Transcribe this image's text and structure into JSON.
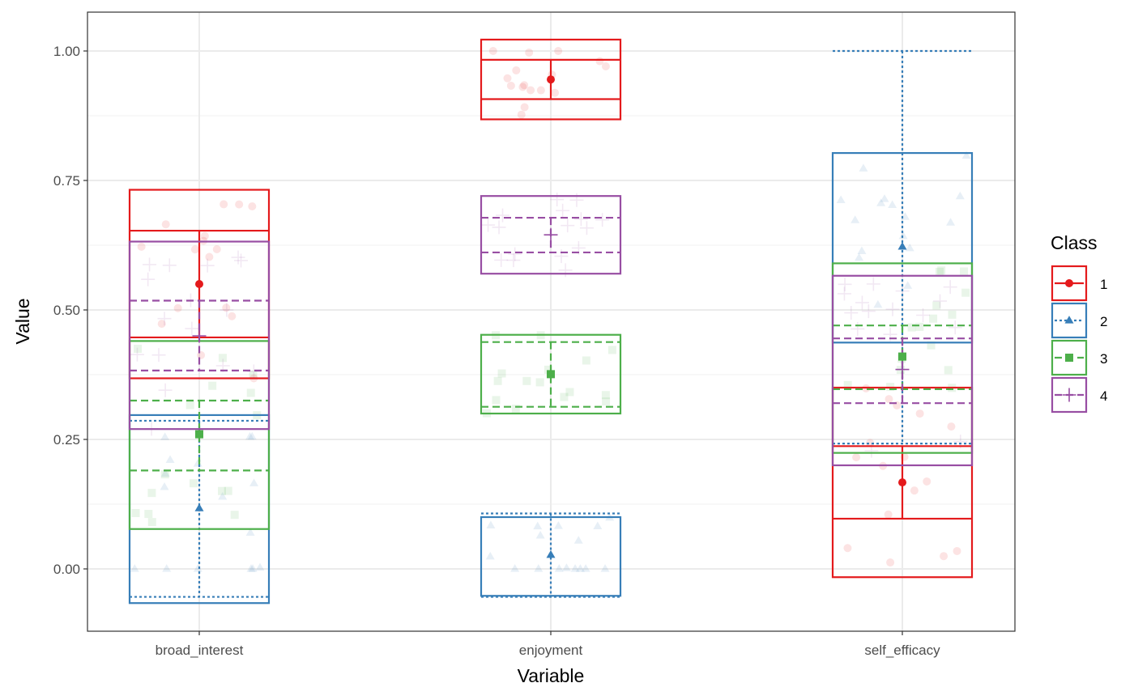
{
  "chart_data": {
    "type": "boxplot",
    "xlabel": "Variable",
    "ylabel": "Value",
    "categories": [
      "broad_interest",
      "enjoyment",
      "self_efficacy"
    ],
    "ylim": [
      -0.075,
      1.075
    ],
    "yticks": [
      0.0,
      0.25,
      0.5,
      0.75,
      1.0
    ],
    "ytick_labels": [
      "0.00",
      "0.25",
      "0.50",
      "0.75",
      "1.00"
    ],
    "grid": true,
    "legend": {
      "title": "Class",
      "position": "right"
    },
    "series": [
      {
        "name": "1",
        "color": "#e41a1c",
        "linetype": "solid",
        "shape": "circle",
        "mean": [
          0.55,
          0.945,
          0.167
        ],
        "ci": [
          [
            0.447,
            0.653
          ],
          [
            0.907,
            0.983
          ],
          [
            0.097,
            0.237
          ]
        ],
        "box": [
          [
            0.368,
            0.732
          ],
          [
            0.868,
            1.022
          ],
          [
            -0.016,
            0.35
          ]
        ],
        "band_start": [
          -0.5,
          -0.5,
          -0.5
        ]
      },
      {
        "name": "2",
        "color": "#377eb8",
        "linetype": "dotted",
        "shape": "triangle",
        "mean": [
          0.117,
          0.027,
          0.622
        ],
        "ci": [
          [
            -0.054,
            0.286
          ],
          [
            -0.054,
            0.107
          ],
          [
            0.242,
            1.0
          ]
        ],
        "box": [
          [
            -0.066,
            0.297
          ],
          [
            -0.052,
            0.1
          ],
          [
            0.437,
            0.803
          ]
        ],
        "band_start": [
          -0.1,
          -0.1,
          -0.1
        ]
      },
      {
        "name": "3",
        "color": "#4daf4a",
        "linetype": "dashed",
        "shape": "square",
        "mean": [
          0.26,
          0.376,
          0.41
        ],
        "ci": [
          [
            0.19,
            0.325
          ],
          [
            0.313,
            0.438
          ],
          [
            0.347,
            0.47
          ]
        ],
        "box": [
          [
            0.077,
            0.44
          ],
          [
            0.3,
            0.452
          ],
          [
            0.224,
            0.59
          ]
        ],
        "band_start": [
          0.3,
          0.3,
          0.3
        ]
      },
      {
        "name": "4",
        "color": "#984ea3",
        "linetype": "dashed",
        "shape": "plus",
        "mean": [
          0.45,
          0.645,
          0.385
        ],
        "ci": [
          [
            0.383,
            0.518
          ],
          [
            0.611,
            0.678
          ],
          [
            0.32,
            0.445
          ]
        ],
        "box": [
          [
            0.27,
            0.632
          ],
          [
            0.57,
            0.72
          ],
          [
            0.2,
            0.566
          ]
        ],
        "band_start": [
          0.1,
          0.1,
          0.1
        ]
      }
    ]
  }
}
